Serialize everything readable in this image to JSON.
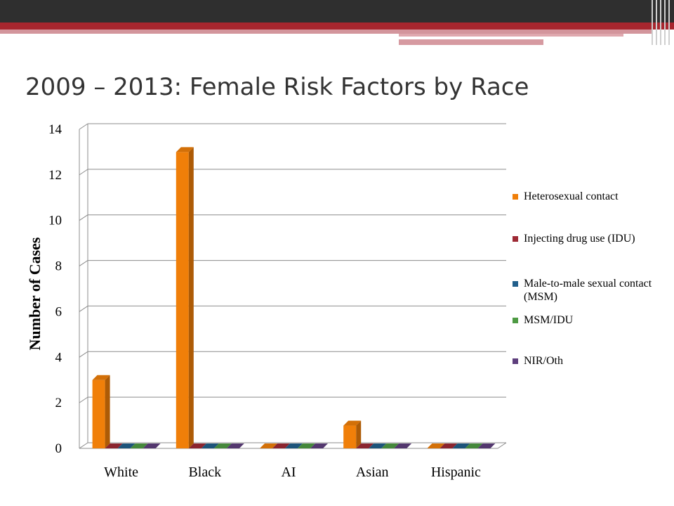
{
  "slide": {
    "title": "2009 – 2013: Female Risk Factors by Race"
  },
  "chart_data": {
    "type": "bar",
    "title": "",
    "ylabel": "Number of Cases",
    "xlabel": "",
    "ylim": [
      0,
      14
    ],
    "yticks": [
      "0",
      "2",
      "4",
      "6",
      "8",
      "10",
      "12",
      "14"
    ],
    "grid": true,
    "legend_position": "right",
    "categories": [
      "White",
      "Black",
      "AI",
      "Asian",
      "Hispanic"
    ],
    "series": [
      {
        "name": "Heterosexual contact",
        "color": "#f07f09",
        "values": [
          3,
          13,
          0,
          1,
          0
        ]
      },
      {
        "name": "Injecting drug use (IDU)",
        "color": "#9e2a35",
        "values": [
          0,
          0,
          0,
          0,
          0
        ]
      },
      {
        "name": "Male-to-male sexual contact (MSM)",
        "color": "#215f8b",
        "values": [
          0,
          0,
          0,
          0,
          0
        ]
      },
      {
        "name": "MSM/IDU",
        "color": "#4e9a43",
        "values": [
          0,
          0,
          0,
          0,
          0
        ]
      },
      {
        "name": "NIR/Oth",
        "color": "#5e3f7d",
        "values": [
          0,
          0,
          0,
          0,
          0
        ]
      }
    ]
  }
}
